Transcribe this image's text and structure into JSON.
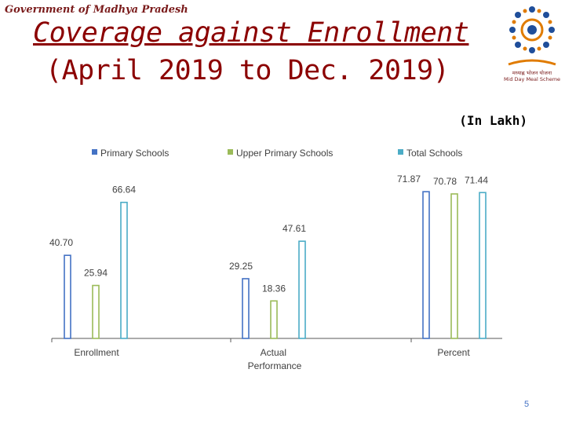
{
  "header": {
    "organization": "Government of Madhya Pradesh",
    "title_line1": "Coverage against Enrollment",
    "title_line2": "(April 2019 to Dec. 2019)",
    "unit_note": "(In Lakh)",
    "logo_caption_line1": "मध्याह्न भोजन योजना",
    "logo_caption_line2": "Mid Day Meal Scheme"
  },
  "colors": {
    "title": "#8b0000",
    "primary": "#4472c4",
    "upper_primary": "#9bbb59",
    "total": "#4bacc6",
    "page_number": "#4472c4"
  },
  "chart_data": {
    "type": "bar",
    "title": "Coverage against Enrollment",
    "categories": [
      "Enrollment",
      "Actual Performance",
      "Percent"
    ],
    "series": [
      {
        "name": "Primary Schools",
        "values": [
          40.7,
          29.25,
          71.87
        ],
        "labels": [
          "40.70",
          "29.25",
          "71.87"
        ]
      },
      {
        "name": "Upper Primary  Schools",
        "values": [
          25.94,
          18.36,
          70.78
        ],
        "labels": [
          "25.94",
          "18.36",
          "70.78"
        ]
      },
      {
        "name": "Total Schools",
        "values": [
          66.64,
          47.61,
          71.44
        ],
        "labels": [
          "66.64",
          "47.61",
          "71.44"
        ]
      }
    ],
    "legend_position": "top",
    "grid": false
  },
  "footer": {
    "page_number": "5"
  }
}
